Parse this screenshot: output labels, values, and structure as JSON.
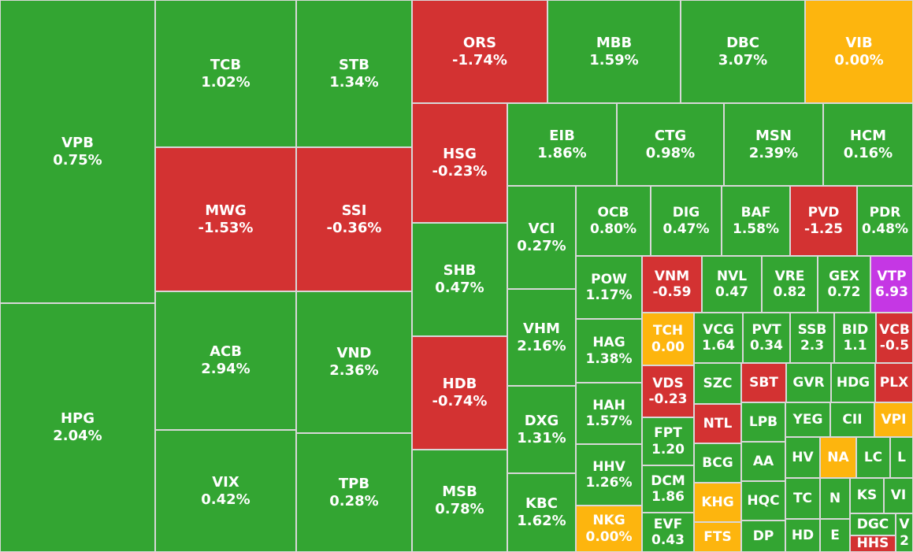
{
  "chart_data": {
    "type": "treemap",
    "colors": {
      "up": "#33a532",
      "down": "#d33232",
      "flat": "#fdb50e",
      "ceiling": "#c537e4"
    },
    "tiles": [
      {
        "symbol": "VPB",
        "change": "0.75%",
        "status": "up"
      },
      {
        "symbol": "HPG",
        "change": "2.04%",
        "status": "up"
      },
      {
        "symbol": "TCB",
        "change": "1.02%",
        "status": "up"
      },
      {
        "symbol": "MWG",
        "change": "-1.53%",
        "status": "down"
      },
      {
        "symbol": "ACB",
        "change": "2.94%",
        "status": "up"
      },
      {
        "symbol": "VIX",
        "change": "0.42%",
        "status": "up"
      },
      {
        "symbol": "STB",
        "change": "1.34%",
        "status": "up"
      },
      {
        "symbol": "SSI",
        "change": "-0.36%",
        "status": "down"
      },
      {
        "symbol": "VND",
        "change": "2.36%",
        "status": "up"
      },
      {
        "symbol": "TPB",
        "change": "0.28%",
        "status": "up"
      },
      {
        "symbol": "ORS",
        "change": "-1.74%",
        "status": "down"
      },
      {
        "symbol": "MBB",
        "change": "1.59%",
        "status": "up"
      },
      {
        "symbol": "DBC",
        "change": "3.07%",
        "status": "up"
      },
      {
        "symbol": "VIB",
        "change": "0.00%",
        "status": "flat"
      },
      {
        "symbol": "HSG",
        "change": "-0.23%",
        "status": "down"
      },
      {
        "symbol": "SHB",
        "change": "0.47%",
        "status": "up"
      },
      {
        "symbol": "HDB",
        "change": "-0.74%",
        "status": "down"
      },
      {
        "symbol": "MSB",
        "change": "0.78%",
        "status": "up"
      },
      {
        "symbol": "EIB",
        "change": "1.86%",
        "status": "up"
      },
      {
        "symbol": "CTG",
        "change": "0.98%",
        "status": "up"
      },
      {
        "symbol": "MSN",
        "change": "2.39%",
        "status": "up"
      },
      {
        "symbol": "HCM",
        "change": "0.16%",
        "status": "up"
      },
      {
        "symbol": "VCI",
        "change": "0.27%",
        "status": "up"
      },
      {
        "symbol": "VHM",
        "change": "2.16%",
        "status": "up"
      },
      {
        "symbol": "DXG",
        "change": "1.31%",
        "status": "up"
      },
      {
        "symbol": "KBC",
        "change": "1.62%",
        "status": "up"
      },
      {
        "symbol": "OCB",
        "change": "0.80%",
        "status": "up"
      },
      {
        "symbol": "DIG",
        "change": "0.47%",
        "status": "up"
      },
      {
        "symbol": "BAF",
        "change": "1.58%",
        "status": "up"
      },
      {
        "symbol": "PVD",
        "change": "-1.25",
        "status": "down"
      },
      {
        "symbol": "PDR",
        "change": "0.48%",
        "status": "up"
      },
      {
        "symbol": "POW",
        "change": "1.17%",
        "status": "up"
      },
      {
        "symbol": "HAG",
        "change": "1.38%",
        "status": "up"
      },
      {
        "symbol": "HAH",
        "change": "1.57%",
        "status": "up"
      },
      {
        "symbol": "HHV",
        "change": "1.26%",
        "status": "up"
      },
      {
        "symbol": "NKG",
        "change": "0.00%",
        "status": "flat"
      },
      {
        "symbol": "VNM",
        "change": "-0.59",
        "status": "down"
      },
      {
        "symbol": "NVL",
        "change": "0.47",
        "status": "up"
      },
      {
        "symbol": "VRE",
        "change": "0.82",
        "status": "up"
      },
      {
        "symbol": "GEX",
        "change": "0.72",
        "status": "up"
      },
      {
        "symbol": "VTP",
        "change": "6.93",
        "status": "ceil"
      },
      {
        "symbol": "TCH",
        "change": "0.00",
        "status": "flat"
      },
      {
        "symbol": "VCG",
        "change": "1.64",
        "status": "up"
      },
      {
        "symbol": "PVT",
        "change": "0.34",
        "status": "up"
      },
      {
        "symbol": "SSB",
        "change": "2.3",
        "status": "up"
      },
      {
        "symbol": "BID",
        "change": "1.1",
        "status": "up"
      },
      {
        "symbol": "VCB",
        "change": "-0.5",
        "status": "down"
      },
      {
        "symbol": "VDS",
        "change": "-0.23",
        "status": "down"
      },
      {
        "symbol": "FPT",
        "change": "1.20",
        "status": "up"
      },
      {
        "symbol": "DCM",
        "change": "1.86",
        "status": "up"
      },
      {
        "symbol": "EVF",
        "change": "0.43",
        "status": "up"
      },
      {
        "symbol": "SZC",
        "change": "",
        "status": "up"
      },
      {
        "symbol": "SBT",
        "change": "",
        "status": "down"
      },
      {
        "symbol": "GVR",
        "change": "",
        "status": "up"
      },
      {
        "symbol": "HDG",
        "change": "",
        "status": "up"
      },
      {
        "symbol": "PLX",
        "change": "",
        "status": "down"
      },
      {
        "symbol": "NTL",
        "change": "",
        "status": "down"
      },
      {
        "symbol": "LPB",
        "change": "",
        "status": "up"
      },
      {
        "symbol": "YEG",
        "change": "",
        "status": "up"
      },
      {
        "symbol": "CII",
        "change": "",
        "status": "up"
      },
      {
        "symbol": "VPI",
        "change": "",
        "status": "flat"
      },
      {
        "symbol": "BCG",
        "change": "",
        "status": "up"
      },
      {
        "symbol": "AA",
        "change": "",
        "status": "up"
      },
      {
        "symbol": "HV",
        "change": "",
        "status": "up"
      },
      {
        "symbol": "NA",
        "change": "",
        "status": "flat"
      },
      {
        "symbol": "LC",
        "change": "",
        "status": "up"
      },
      {
        "symbol": "L",
        "change": "",
        "status": "up"
      },
      {
        "symbol": "KHG",
        "change": "",
        "status": "flat"
      },
      {
        "symbol": "HQC",
        "change": "",
        "status": "up"
      },
      {
        "symbol": "TC",
        "change": "",
        "status": "up"
      },
      {
        "symbol": "N",
        "change": "",
        "status": "up"
      },
      {
        "symbol": "KS",
        "change": "",
        "status": "up"
      },
      {
        "symbol": "VI",
        "change": "",
        "status": "up"
      },
      {
        "symbol": "FTS",
        "change": "",
        "status": "flat"
      },
      {
        "symbol": "DP",
        "change": "",
        "status": "up"
      },
      {
        "symbol": "HD",
        "change": "",
        "status": "up"
      },
      {
        "symbol": "E",
        "change": "",
        "status": "up"
      },
      {
        "symbol": "DGC",
        "change": "",
        "status": "up"
      },
      {
        "symbol": "V",
        "change": "2",
        "status": "up"
      },
      {
        "symbol": "HHS",
        "change": "",
        "status": "down"
      }
    ]
  }
}
